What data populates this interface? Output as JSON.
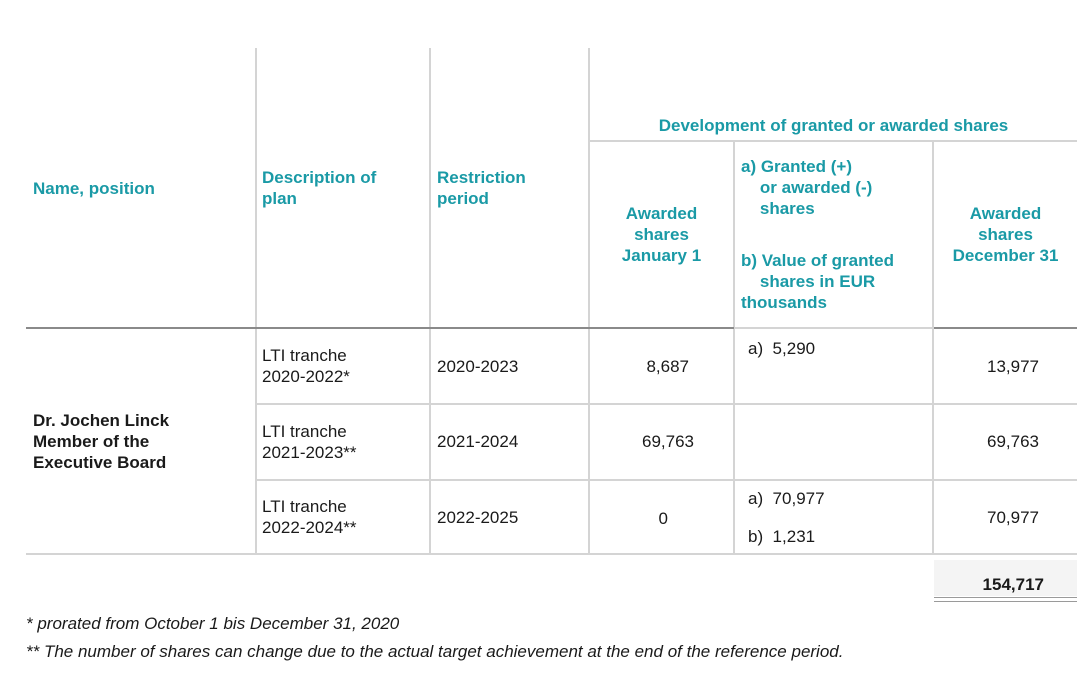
{
  "headers": {
    "name_position": "Name, position",
    "description_of_plan": "Description of\nplan",
    "restriction_period": "Restriction\nperiod",
    "development_group": "Development of granted or awarded shares",
    "awarded_jan1": "Awarded\nshares\nJanuary 1",
    "granted_a": "a) Granted (+)\n    or awarded (-)\n    shares",
    "granted_b": "b) Value of granted\n    shares in EUR\nthousands",
    "awarded_dec31": "Awarded\nshares\nDecember 31"
  },
  "person": "Dr. Jochen Linck\nMember of the\nExecutive Board",
  "rows": [
    {
      "plan": "LTI tranche\n2020-2022*",
      "period": "2020-2023",
      "jan1": "8,687",
      "a": "a)  5,290",
      "b": "",
      "dec31": "13,977"
    },
    {
      "plan": "LTI tranche\n2021-2023**",
      "period": "2021-2024",
      "jan1": "69,763",
      "a": "",
      "b": "",
      "dec31": "69,763"
    },
    {
      "plan": "LTI tranche\n2022-2024**",
      "period": "2022-2025",
      "jan1": "0",
      "a": "a)  70,977",
      "b": "b)  1,231",
      "dec31": "70,977"
    }
  ],
  "total": "154,717",
  "footnotes": [
    "* prorated from October 1 bis December 31, 2020",
    "** The number of shares can change due to the actual target achievement at the end of the reference period."
  ]
}
